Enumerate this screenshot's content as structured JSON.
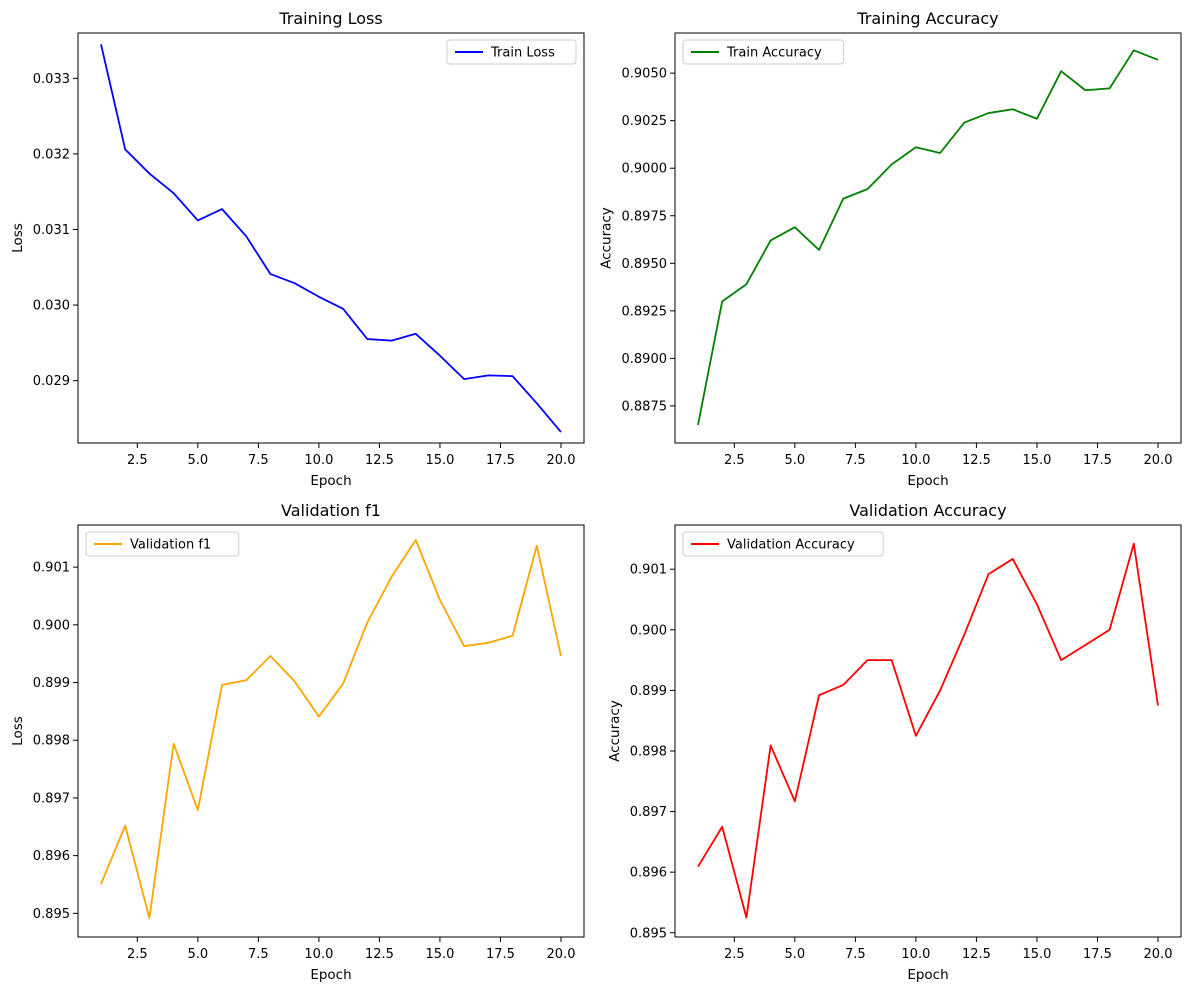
{
  "chart_data": [
    {
      "type": "line",
      "title": "Training Loss",
      "xlabel": "Epoch",
      "ylabel": "Loss",
      "grid": false,
      "legend_position": "top-right",
      "xlim": [
        0.05,
        20.95
      ],
      "ylim": [
        0.028175,
        0.0336
      ],
      "xticks": [
        2.5,
        5.0,
        7.5,
        10.0,
        12.5,
        15.0,
        17.5,
        20.0
      ],
      "xtick_labels": [
        "2.5",
        "5.0",
        "7.5",
        "10.0",
        "12.5",
        "15.0",
        "17.5",
        "20.0"
      ],
      "yticks": [
        0.029,
        0.03,
        0.031,
        0.032,
        0.033
      ],
      "ytick_labels": [
        "0.029",
        "0.030",
        "0.031",
        "0.032",
        "0.033"
      ],
      "series": [
        {
          "name": "Train Loss",
          "color": "#0000ff",
          "x": [
            1,
            2,
            3,
            4,
            5,
            6,
            7,
            8,
            9,
            10,
            11,
            12,
            13,
            14,
            15,
            16,
            17,
            18,
            19,
            20
          ],
          "values": [
            0.03345,
            0.03206,
            0.03174,
            0.03148,
            0.03112,
            0.03127,
            0.03091,
            0.03041,
            0.03029,
            0.03011,
            0.02995,
            0.02955,
            0.02953,
            0.02962,
            0.02933,
            0.02902,
            0.02907,
            0.02906,
            0.0287,
            0.02832
          ]
        }
      ]
    },
    {
      "type": "line",
      "title": "Training Accuracy",
      "xlabel": "Epoch",
      "ylabel": "Accuracy",
      "grid": false,
      "legend_position": "top-left",
      "xlim": [
        0.05,
        20.95
      ],
      "ylim": [
        0.88555,
        0.90711
      ],
      "xticks": [
        2.5,
        5.0,
        7.5,
        10.0,
        12.5,
        15.0,
        17.5,
        20.0
      ],
      "xtick_labels": [
        "2.5",
        "5.0",
        "7.5",
        "10.0",
        "12.5",
        "15.0",
        "17.5",
        "20.0"
      ],
      "yticks": [
        0.8875,
        0.89,
        0.8925,
        0.895,
        0.8975,
        0.9,
        0.9025,
        0.905
      ],
      "ytick_labels": [
        "0.8875",
        "0.8900",
        "0.8925",
        "0.8950",
        "0.8975",
        "0.9000",
        "0.9025",
        "0.9050"
      ],
      "series": [
        {
          "name": "Train Accuracy",
          "color": "#008000",
          "x": [
            1,
            2,
            3,
            4,
            5,
            6,
            7,
            8,
            9,
            10,
            11,
            12,
            13,
            14,
            15,
            16,
            17,
            18,
            19,
            20
          ],
          "values": [
            0.8865,
            0.893,
            0.8939,
            0.8962,
            0.8969,
            0.8957,
            0.8984,
            0.8989,
            0.9002,
            0.9011,
            0.9008,
            0.9024,
            0.9029,
            0.9031,
            0.9026,
            0.9051,
            0.9041,
            0.9042,
            0.9062,
            0.9057
          ]
        }
      ]
    },
    {
      "type": "line",
      "title": "Validation f1",
      "xlabel": "Epoch",
      "ylabel": "Loss",
      "grid": false,
      "legend_position": "top-left",
      "xlim": [
        0.05,
        20.95
      ],
      "ylim": [
        0.89459,
        0.90173
      ],
      "xticks": [
        2.5,
        5.0,
        7.5,
        10.0,
        12.5,
        15.0,
        17.5,
        20.0
      ],
      "xtick_labels": [
        "2.5",
        "5.0",
        "7.5",
        "10.0",
        "12.5",
        "15.0",
        "17.5",
        "20.0"
      ],
      "yticks": [
        0.895,
        0.896,
        0.897,
        0.898,
        0.899,
        0.9,
        0.901
      ],
      "ytick_labels": [
        "0.895",
        "0.896",
        "0.897",
        "0.898",
        "0.899",
        "0.900",
        "0.901"
      ],
      "series": [
        {
          "name": "Validation f1",
          "color": "#ffa500",
          "x": [
            1,
            2,
            3,
            4,
            5,
            6,
            7,
            8,
            9,
            10,
            11,
            12,
            13,
            14,
            15,
            16,
            17,
            18,
            19,
            20
          ],
          "values": [
            0.89551,
            0.89652,
            0.89492,
            0.89794,
            0.89679,
            0.89896,
            0.89904,
            0.89946,
            0.89902,
            0.89841,
            0.89898,
            0.90004,
            0.90083,
            0.90147,
            0.90043,
            0.89963,
            0.89969,
            0.89981,
            0.90137,
            0.89946
          ]
        }
      ]
    },
    {
      "type": "line",
      "title": "Validation Accuracy",
      "xlabel": "Epoch",
      "ylabel": "Accuracy",
      "grid": false,
      "legend_position": "top-left",
      "xlim": [
        0.05,
        20.95
      ],
      "ylim": [
        0.89493,
        0.90173
      ],
      "xticks": [
        2.5,
        5.0,
        7.5,
        10.0,
        12.5,
        15.0,
        17.5,
        20.0
      ],
      "xtick_labels": [
        "2.5",
        "5.0",
        "7.5",
        "10.0",
        "12.5",
        "15.0",
        "17.5",
        "20.0"
      ],
      "yticks": [
        0.895,
        0.896,
        0.897,
        0.898,
        0.899,
        0.9,
        0.901
      ],
      "ytick_labels": [
        "0.895",
        "0.896",
        "0.897",
        "0.898",
        "0.899",
        "0.900",
        "0.901"
      ],
      "series": [
        {
          "name": "Validation Accuracy",
          "color": "#ff0000",
          "x": [
            1,
            2,
            3,
            4,
            5,
            6,
            7,
            8,
            9,
            10,
            11,
            12,
            13,
            14,
            15,
            16,
            17,
            18,
            19,
            20
          ],
          "values": [
            0.89609,
            0.89675,
            0.89525,
            0.89809,
            0.89717,
            0.89892,
            0.89909,
            0.8995,
            0.8995,
            0.89825,
            0.899,
            0.89992,
            0.90092,
            0.90117,
            0.90042,
            0.8995,
            0.89975,
            0.9,
            0.90142,
            0.89875
          ]
        }
      ]
    }
  ]
}
